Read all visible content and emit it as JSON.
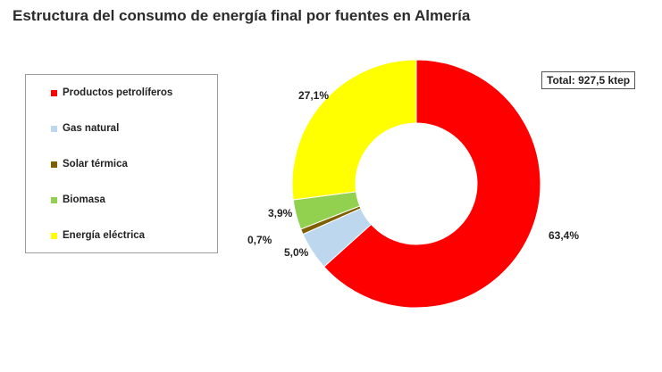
{
  "chart_data": {
    "type": "pie",
    "title": "Estructura del consumo de energía final por fuentes en Almería",
    "total_label": "Total: 927,5 ktep",
    "legend_position": "left",
    "slices": [
      {
        "name": "Productos petrolíferos",
        "value": 63.4,
        "label": "63,4%",
        "color": "#ff0000"
      },
      {
        "name": "Gas natural",
        "value": 5.0,
        "label": "5,0%",
        "color": "#bdd7ee"
      },
      {
        "name": "Solar térmica",
        "value": 0.7,
        "label": "0,7%",
        "color": "#7f5f00"
      },
      {
        "name": "Biomasa",
        "value": 3.9,
        "label": "3,9%",
        "color": "#92d050"
      },
      {
        "name": "Energía eléctrica",
        "value": 27.1,
        "label": "27,1%",
        "color": "#ffff00"
      }
    ]
  }
}
